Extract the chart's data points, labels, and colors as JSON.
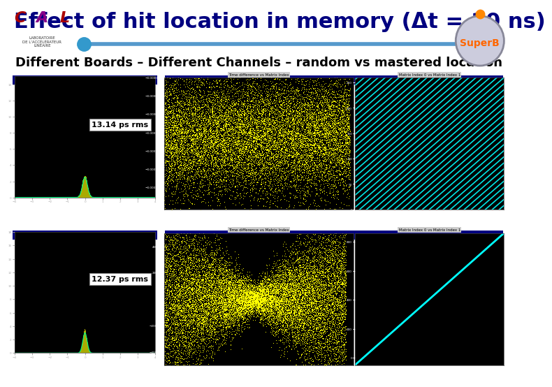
{
  "title": "Effect of hit location in memory (Δt = 10 ns)",
  "subtitle": "Different Boards – Different Channels – random vs mastered location",
  "bg_color": "#ffffff",
  "title_color": "#000080",
  "subtitle_color": "#000000",
  "title_fontsize": 22,
  "subtitle_fontsize": 13,
  "label1": "13.14 ps rms",
  "label2": "12.37 ps rms",
  "header_line_color": "#5599cc",
  "panel_border_color": "#3355aa",
  "win_title_color": "#000080",
  "win_bg_color": "#d4d0c8",
  "plot_bg": "#000000",
  "yellow": "#ffff00",
  "cyan": "#00ffff",
  "green_line": "#00ff88",
  "lime_fill": "#aaaa00"
}
